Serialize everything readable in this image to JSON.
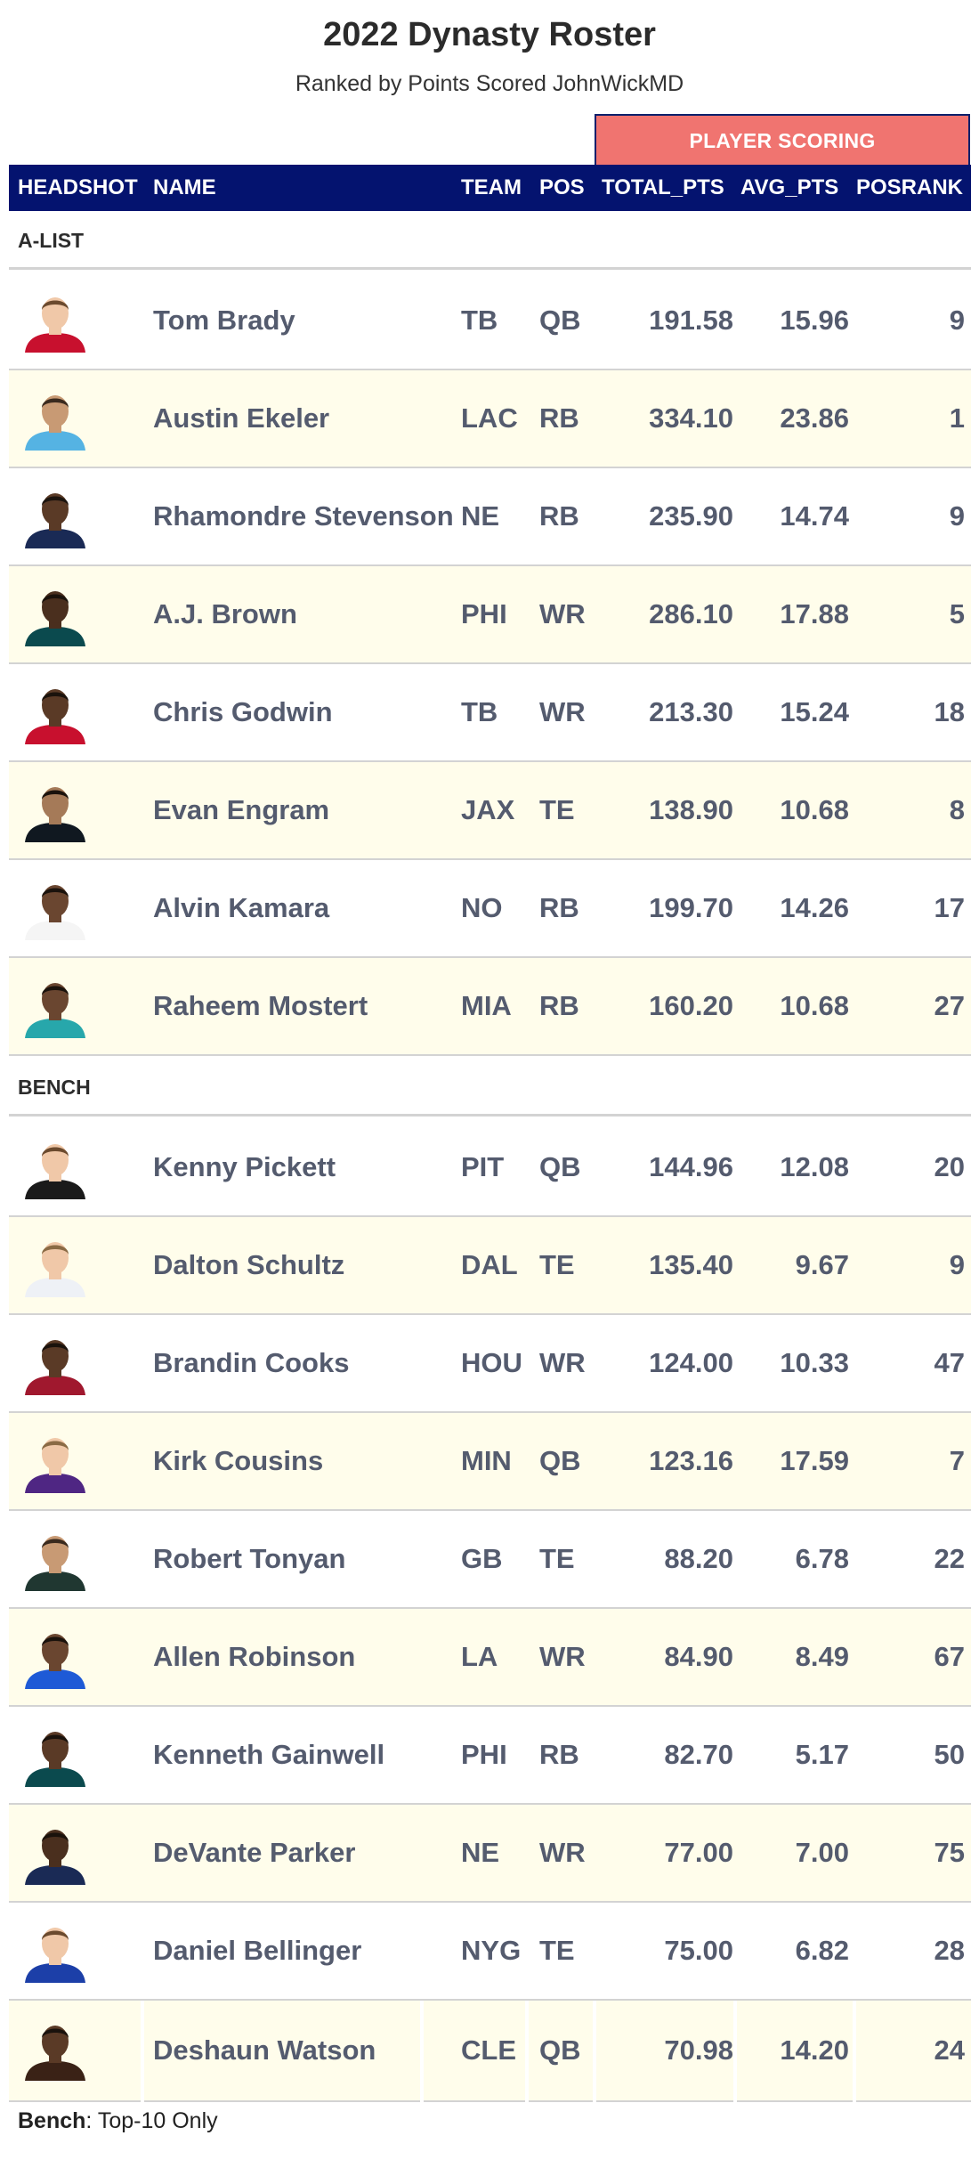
{
  "title": "2022 Dynasty Roster",
  "subtitle": "Ranked by Points Scored JohnWickMD",
  "spanner_label": "PLAYER SCORING",
  "columns": [
    "HEADSHOT",
    "NAME",
    "TEAM",
    "POS",
    "TOTAL_PTS",
    "AVG_PTS",
    "POSRANK"
  ],
  "groups": [
    {
      "label": "A-LIST",
      "players": [
        {
          "name": "Tom Brady",
          "team": "TB",
          "pos": "QB",
          "total_pts": "191.58",
          "avg_pts": "15.96",
          "posrank": "9",
          "jersey": "#c8102e",
          "skin": "#f0c8a8",
          "hair": "#6b4a2e"
        },
        {
          "name": "Austin Ekeler",
          "team": "LAC",
          "pos": "RB",
          "total_pts": "334.10",
          "avg_pts": "23.86",
          "posrank": "1",
          "jersey": "#55b3e3",
          "skin": "#c89a74",
          "hair": "#3a2a1e"
        },
        {
          "name": "Rhamondre Stevenson",
          "team": "NE",
          "pos": "RB",
          "total_pts": "235.90",
          "avg_pts": "14.74",
          "posrank": "9",
          "jersey": "#1a2a55",
          "skin": "#5a3a26",
          "hair": "#1c140e"
        },
        {
          "name": "A.J. Brown",
          "team": "PHI",
          "pos": "WR",
          "total_pts": "286.10",
          "avg_pts": "17.88",
          "posrank": "5",
          "jersey": "#0b4a4e",
          "skin": "#4a2f1e",
          "hair": "#1a120c"
        },
        {
          "name": "Chris Godwin",
          "team": "TB",
          "pos": "WR",
          "total_pts": "213.30",
          "avg_pts": "15.24",
          "posrank": "18",
          "jersey": "#c8102e",
          "skin": "#5a3a26",
          "hair": "#1a120c"
        },
        {
          "name": "Evan Engram",
          "team": "JAX",
          "pos": "TE",
          "total_pts": "138.90",
          "avg_pts": "10.68",
          "posrank": "8",
          "jersey": "#101820",
          "skin": "#a57a58",
          "hair": "#1a120c"
        },
        {
          "name": "Alvin Kamara",
          "team": "NO",
          "pos": "RB",
          "total_pts": "199.70",
          "avg_pts": "14.26",
          "posrank": "17",
          "jersey": "#f5f5f5",
          "skin": "#6a4630",
          "hair": "#1a120c"
        },
        {
          "name": "Raheem Mostert",
          "team": "MIA",
          "pos": "RB",
          "total_pts": "160.20",
          "avg_pts": "10.68",
          "posrank": "27",
          "jersey": "#27a7ab",
          "skin": "#6a4630",
          "hair": "#1a120c"
        }
      ]
    },
    {
      "label": "BENCH",
      "players": [
        {
          "name": "Kenny Pickett",
          "team": "PIT",
          "pos": "QB",
          "total_pts": "144.96",
          "avg_pts": "12.08",
          "posrank": "20",
          "jersey": "#1a1a1a",
          "skin": "#f0c8a8",
          "hair": "#6b4a2e"
        },
        {
          "name": "Dalton Schultz",
          "team": "DAL",
          "pos": "TE",
          "total_pts": "135.40",
          "avg_pts": "9.67",
          "posrank": "9",
          "jersey": "#eef1f6",
          "skin": "#f0c8a8",
          "hair": "#8a6a44"
        },
        {
          "name": "Brandin Cooks",
          "team": "HOU",
          "pos": "WR",
          "total_pts": "124.00",
          "avg_pts": "10.33",
          "posrank": "47",
          "jersey": "#a0182e",
          "skin": "#5a3a26",
          "hair": "#1a120c"
        },
        {
          "name": "Kirk Cousins",
          "team": "MIN",
          "pos": "QB",
          "total_pts": "123.16",
          "avg_pts": "17.59",
          "posrank": "7",
          "jersey": "#4f2683",
          "skin": "#f0c8a8",
          "hair": "#8a6a44"
        },
        {
          "name": "Robert Tonyan",
          "team": "GB",
          "pos": "TE",
          "total_pts": "88.20",
          "avg_pts": "6.78",
          "posrank": "22",
          "jersey": "#203731",
          "skin": "#c89a74",
          "hair": "#3a2a1e"
        },
        {
          "name": "Allen Robinson",
          "team": "LA",
          "pos": "WR",
          "total_pts": "84.90",
          "avg_pts": "8.49",
          "posrank": "67",
          "jersey": "#1e5ad6",
          "skin": "#6a4630",
          "hair": "#1a120c"
        },
        {
          "name": "Kenneth Gainwell",
          "team": "PHI",
          "pos": "RB",
          "total_pts": "82.70",
          "avg_pts": "5.17",
          "posrank": "50",
          "jersey": "#0b4a4e",
          "skin": "#5a3a26",
          "hair": "#1a120c"
        },
        {
          "name": "DeVante Parker",
          "team": "NE",
          "pos": "WR",
          "total_pts": "77.00",
          "avg_pts": "7.00",
          "posrank": "75",
          "jersey": "#1a2a55",
          "skin": "#4a2f1e",
          "hair": "#1a120c"
        },
        {
          "name": "Daniel Bellinger",
          "team": "NYG",
          "pos": "TE",
          "total_pts": "75.00",
          "avg_pts": "6.82",
          "posrank": "28",
          "jersey": "#1c3fa8",
          "skin": "#f0c8a8",
          "hair": "#6b4a2e"
        },
        {
          "name": "Deshaun Watson",
          "team": "CLE",
          "pos": "QB",
          "total_pts": "70.98",
          "avg_pts": "14.20",
          "posrank": "24",
          "jersey": "#3a2216",
          "skin": "#5a3a26",
          "hair": "#1a120c"
        }
      ]
    }
  ],
  "footer": {
    "bold": "Bench",
    "text": ": Top-10 Only"
  },
  "colors": {
    "header_bg": "#04136f",
    "spanner_bg": "#f07470",
    "alt_row_bg": "#fffdeb",
    "cell_text": "#545b6e"
  }
}
